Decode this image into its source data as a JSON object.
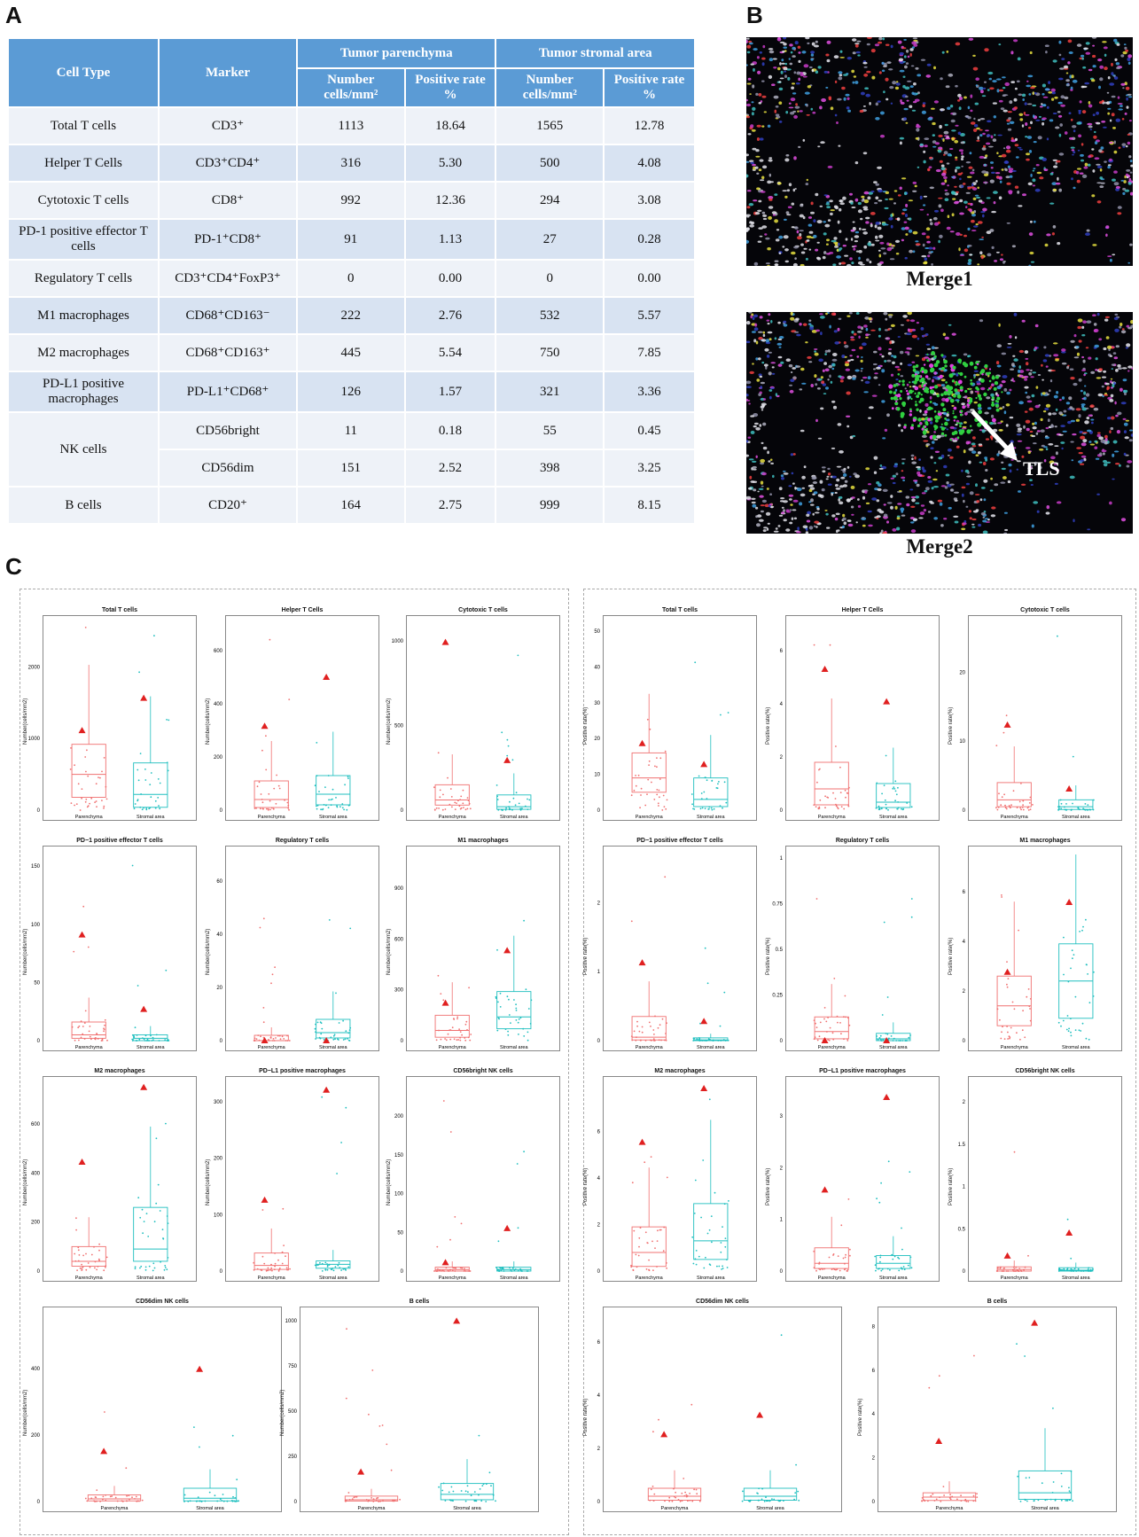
{
  "panels": {
    "a": "A",
    "b": "B",
    "c": "C"
  },
  "table": {
    "col_cell_type": "Cell Type",
    "col_marker": "Marker",
    "group_parenchyma": "Tumor parenchyma",
    "group_stromal": "Tumor stromal area",
    "sub_number": "Number cells/mm²",
    "sub_rate": "Positive rate %",
    "rows": [
      {
        "cell": "Total T cells",
        "marker": "CD3⁺",
        "p_num": "1113",
        "p_rate": "18.64",
        "s_num": "1565",
        "s_rate": "12.78"
      },
      {
        "cell": "Helper T Cells",
        "marker": "CD3⁺CD4⁺",
        "p_num": "316",
        "p_rate": "5.30",
        "s_num": "500",
        "s_rate": "4.08"
      },
      {
        "cell": "Cytotoxic T cells",
        "marker": "CD8⁺",
        "p_num": "992",
        "p_rate": "12.36",
        "s_num": "294",
        "s_rate": "3.08"
      },
      {
        "cell": "PD-1 positive effector T cells",
        "marker": "PD-1⁺CD8⁺",
        "p_num": "91",
        "p_rate": "1.13",
        "s_num": "27",
        "s_rate": "0.28"
      },
      {
        "cell": "Regulatory T cells",
        "marker": "CD3⁺CD4⁺FoxP3⁺",
        "p_num": "0",
        "p_rate": "0.00",
        "s_num": "0",
        "s_rate": "0.00"
      },
      {
        "cell": "M1 macrophages",
        "marker": "CD68⁺CD163⁻",
        "p_num": "222",
        "p_rate": "2.76",
        "s_num": "532",
        "s_rate": "5.57"
      },
      {
        "cell": "M2 macrophages",
        "marker": "CD68⁺CD163⁺",
        "p_num": "445",
        "p_rate": "5.54",
        "s_num": "750",
        "s_rate": "7.85"
      },
      {
        "cell": "PD-L1 positive macrophages",
        "marker": "PD-L1⁺CD68⁺",
        "p_num": "126",
        "p_rate": "1.57",
        "s_num": "321",
        "s_rate": "3.36"
      },
      {
        "cell": "NK cells",
        "marker": "CD56bright",
        "p_num": "11",
        "p_rate": "0.18",
        "s_num": "55",
        "s_rate": "0.45"
      },
      {
        "cell": "",
        "marker": "CD56dim",
        "p_num": "151",
        "p_rate": "2.52",
        "s_num": "398",
        "s_rate": "3.25"
      },
      {
        "cell": "B cells",
        "marker": "CD20⁺",
        "p_num": "164",
        "p_rate": "2.75",
        "s_num": "999",
        "s_rate": "8.15"
      }
    ]
  },
  "images": {
    "merge1": "Merge1",
    "merge2": "Merge2",
    "tls": "TLS"
  },
  "colors": {
    "parenchyma": "#f07070",
    "stromal": "#1fbfbf",
    "mean_marker": "#e02020",
    "table_header": "#5b9bd5"
  },
  "chart_data": [
    {
      "type": "box",
      "group": "number",
      "title": "Total T cells",
      "ylabel": "Number(cells/mm2)",
      "categories": [
        "Parenchyma",
        "Stromal area"
      ],
      "yticks": [
        0,
        1000,
        2000
      ],
      "ylim": [
        0,
        2600
      ],
      "medians": [
        500,
        220
      ],
      "q1": [
        180,
        40
      ],
      "q3": [
        920,
        660
      ],
      "means": [
        1113,
        1565
      ]
    },
    {
      "type": "box",
      "group": "number",
      "title": "Helper T Cells",
      "ylabel": "Number(cells/mm2)",
      "categories": [
        "Parenchyma",
        "Stromal area"
      ],
      "yticks": [
        0,
        200,
        400,
        600
      ],
      "ylim": [
        0,
        700
      ],
      "medians": [
        40,
        60
      ],
      "q1": [
        10,
        20
      ],
      "q3": [
        110,
        130
      ],
      "means": [
        316,
        500
      ]
    },
    {
      "type": "box",
      "group": "number",
      "title": "Cytotoxic T cells",
      "ylabel": "Number(cells/mm2)",
      "categories": [
        "Parenchyma",
        "Stromal area"
      ],
      "yticks": [
        0,
        500,
        1000
      ],
      "ylim": [
        0,
        1100
      ],
      "medians": [
        60,
        20
      ],
      "q1": [
        30,
        5
      ],
      "q3": [
        150,
        90
      ],
      "means": [
        992,
        294
      ]
    },
    {
      "type": "box",
      "group": "number",
      "title": "PD−1 positive effector T cells",
      "ylabel": "Number(cells/mm2)",
      "categories": [
        "Parenchyma",
        "Stromal area"
      ],
      "yticks": [
        0,
        50,
        100,
        150
      ],
      "ylim": [
        0,
        160
      ],
      "medians": [
        5,
        2
      ],
      "q1": [
        2,
        0
      ],
      "q3": [
        16,
        5
      ],
      "means": [
        91,
        27
      ]
    },
    {
      "type": "box",
      "group": "number",
      "title": "Regulatory T cells",
      "ylabel": "Number(cells/mm2)",
      "categories": [
        "Parenchyma",
        "Stromal area"
      ],
      "yticks": [
        0,
        20,
        40,
        60
      ],
      "ylim": [
        0,
        70
      ],
      "medians": [
        0,
        3
      ],
      "q1": [
        0,
        1
      ],
      "q3": [
        2,
        8
      ],
      "means": [
        0,
        0
      ]
    },
    {
      "type": "box",
      "group": "number",
      "title": "M1 macrophages",
      "ylabel": "Number(cells/mm2)",
      "categories": [
        "Parenchyma",
        "Stromal area"
      ],
      "yticks": [
        0,
        300,
        600,
        900
      ],
      "ylim": [
        0,
        1100
      ],
      "medians": [
        60,
        140
      ],
      "q1": [
        20,
        70
      ],
      "q3": [
        150,
        290
      ],
      "means": [
        222,
        532
      ]
    },
    {
      "type": "box",
      "group": "number",
      "title": "M2 macrophages",
      "ylabel": "Number(cells/mm2)",
      "categories": [
        "Parenchyma",
        "Stromal area"
      ],
      "yticks": [
        0,
        200,
        400,
        600
      ],
      "ylim": [
        0,
        760
      ],
      "medians": [
        40,
        90
      ],
      "q1": [
        20,
        40
      ],
      "q3": [
        100,
        260
      ],
      "means": [
        445,
        750
      ]
    },
    {
      "type": "box",
      "group": "number",
      "title": "PD−L1 positive macrophages",
      "ylabel": "Number(cells/mm2)",
      "categories": [
        "Parenchyma",
        "Stromal area"
      ],
      "yticks": [
        0,
        100,
        200,
        300
      ],
      "ylim": [
        0,
        330
      ],
      "medians": [
        10,
        12
      ],
      "q1": [
        3,
        5
      ],
      "q3": [
        32,
        18
      ],
      "means": [
        126,
        321
      ]
    },
    {
      "type": "box",
      "group": "number",
      "title": "CD56bright NK cells",
      "ylabel": "Number(cells/mm2)",
      "categories": [
        "Parenchyma",
        "Stromal area"
      ],
      "yticks": [
        0,
        50,
        100,
        150,
        200
      ],
      "ylim": [
        0,
        240
      ],
      "medians": [
        2,
        2
      ],
      "q1": [
        0,
        0
      ],
      "q3": [
        5,
        5
      ],
      "means": [
        11,
        55
      ]
    },
    {
      "type": "box",
      "group": "number",
      "title": "CD56dim NK cells",
      "ylabel": "Number(cells/mm2)",
      "categories": [
        "Parenchyma",
        "Stromal area"
      ],
      "yticks": [
        0,
        200,
        400
      ],
      "ylim": [
        0,
        560
      ],
      "medians": [
        8,
        10
      ],
      "q1": [
        2,
        2
      ],
      "q3": [
        20,
        40
      ],
      "means": [
        151,
        398
      ]
    },
    {
      "type": "box",
      "group": "number",
      "title": "B cells",
      "ylabel": "Number(cells/mm2)",
      "categories": [
        "Parenchyma",
        "Stromal area"
      ],
      "yticks": [
        0,
        250,
        500,
        750,
        1000
      ],
      "ylim": [
        0,
        1030
      ],
      "medians": [
        10,
        40
      ],
      "q1": [
        3,
        10
      ],
      "q3": [
        30,
        100
      ],
      "means": [
        164,
        999
      ]
    },
    {
      "type": "box",
      "group": "rate",
      "title": "Total T cells",
      "ylabel": "Positive rate(%)",
      "categories": [
        "Parenchyma",
        "Stromal area"
      ],
      "yticks": [
        0,
        10,
        20,
        30,
        40,
        50
      ],
      "ylim": [
        0,
        52
      ],
      "medians": [
        9,
        3
      ],
      "q1": [
        5,
        1
      ],
      "q3": [
        16,
        9
      ],
      "means": [
        18.64,
        12.78
      ]
    },
    {
      "type": "box",
      "group": "rate",
      "title": "Helper T Cells",
      "ylabel": "Positive rate(%)",
      "categories": [
        "Parenchyma",
        "Stromal area"
      ],
      "yticks": [
        0,
        2,
        4,
        6
      ],
      "ylim": [
        0,
        7
      ],
      "medians": [
        0.8,
        0.3
      ],
      "q1": [
        0.2,
        0.1
      ],
      "q3": [
        1.8,
        1.0
      ],
      "means": [
        5.3,
        4.08
      ]
    },
    {
      "type": "box",
      "group": "rate",
      "title": "Cytotoxic T cells",
      "ylabel": "Positive rate(%)",
      "categories": [
        "Parenchyma",
        "Stromal area"
      ],
      "yticks": [
        0,
        10,
        20
      ],
      "ylim": [
        0,
        27
      ],
      "medians": [
        1.5,
        0.5
      ],
      "q1": [
        0.5,
        0.1
      ],
      "q3": [
        4,
        1.5
      ],
      "means": [
        12.36,
        3.08
      ]
    },
    {
      "type": "box",
      "group": "rate",
      "title": "PD−1 positive effector T cells",
      "ylabel": "Positive rate(%)",
      "categories": [
        "Parenchyma",
        "Stromal area"
      ],
      "yticks": [
        0,
        1,
        2
      ],
      "ylim": [
        0,
        2.7
      ],
      "medians": [
        0.05,
        0.01
      ],
      "q1": [
        0.01,
        0
      ],
      "q3": [
        0.35,
        0.04
      ],
      "means": [
        1.13,
        0.28
      ]
    },
    {
      "type": "box",
      "group": "rate",
      "title": "Regulatory T cells",
      "ylabel": "Positive rate(%)",
      "categories": [
        "Parenchyma",
        "Stromal area"
      ],
      "yticks": [
        0,
        0.25,
        0.5,
        0.75,
        1.0
      ],
      "ylim": [
        0,
        1.02
      ],
      "medians": [
        0.05,
        0.01
      ],
      "q1": [
        0.01,
        0
      ],
      "q3": [
        0.13,
        0.04
      ],
      "means": [
        0,
        0
      ]
    },
    {
      "type": "box",
      "group": "rate",
      "title": "M1 macrophages",
      "ylabel": "Positive rate(%)",
      "categories": [
        "Parenchyma",
        "Stromal area"
      ],
      "yticks": [
        0,
        2,
        4,
        6
      ],
      "ylim": [
        0,
        7.5
      ],
      "medians": [
        1.4,
        2.4
      ],
      "q1": [
        0.6,
        0.9
      ],
      "q3": [
        2.6,
        3.9
      ],
      "means": [
        2.76,
        5.57
      ]
    },
    {
      "type": "box",
      "group": "rate",
      "title": "M2 macrophages",
      "ylabel": "Positive rate(%)",
      "categories": [
        "Parenchyma",
        "Stromal area"
      ],
      "yticks": [
        0,
        2,
        4,
        6
      ],
      "ylim": [
        0,
        8
      ],
      "medians": [
        0.8,
        1.3
      ],
      "q1": [
        0.2,
        0.5
      ],
      "q3": [
        1.9,
        2.9
      ],
      "means": [
        5.54,
        7.85
      ]
    },
    {
      "type": "box",
      "group": "rate",
      "title": "PD−L1 positive macrophages",
      "ylabel": "Positive rate(%)",
      "categories": [
        "Parenchyma",
        "Stromal area"
      ],
      "yticks": [
        0,
        1,
        2,
        3
      ],
      "ylim": [
        0,
        3.6
      ],
      "medians": [
        0.15,
        0.15
      ],
      "q1": [
        0.05,
        0.05
      ],
      "q3": [
        0.45,
        0.3
      ],
      "means": [
        1.57,
        3.36
      ]
    },
    {
      "type": "box",
      "group": "rate",
      "title": "CD56bright NK cells",
      "ylabel": "Positive rate(%)",
      "categories": [
        "Parenchyma",
        "Stromal area"
      ],
      "yticks": [
        0,
        0.5,
        1.0,
        1.5,
        2.0
      ],
      "ylim": [
        0,
        2.2
      ],
      "medians": [
        0.02,
        0.01
      ],
      "q1": [
        0,
        0
      ],
      "q3": [
        0.05,
        0.04
      ],
      "means": [
        0.18,
        0.45
      ]
    },
    {
      "type": "box",
      "group": "rate",
      "title": "CD56dim NK cells",
      "ylabel": "Positive rate(%)",
      "categories": [
        "Parenchyma",
        "Stromal area"
      ],
      "yticks": [
        0,
        2,
        4,
        6
      ],
      "ylim": [
        0,
        7
      ],
      "medians": [
        0.2,
        0.2
      ],
      "q1": [
        0.05,
        0.05
      ],
      "q3": [
        0.5,
        0.5
      ],
      "means": [
        2.52,
        3.25
      ]
    },
    {
      "type": "box",
      "group": "rate",
      "title": "B cells",
      "ylabel": "Positive rate(%)",
      "categories": [
        "Parenchyma",
        "Stromal area"
      ],
      "yticks": [
        0,
        2,
        4,
        6,
        8
      ],
      "ylim": [
        0,
        8.5
      ],
      "medians": [
        0.2,
        0.4
      ],
      "q1": [
        0.05,
        0.1
      ],
      "q3": [
        0.4,
        1.4
      ],
      "means": [
        2.75,
        8.15
      ]
    }
  ]
}
